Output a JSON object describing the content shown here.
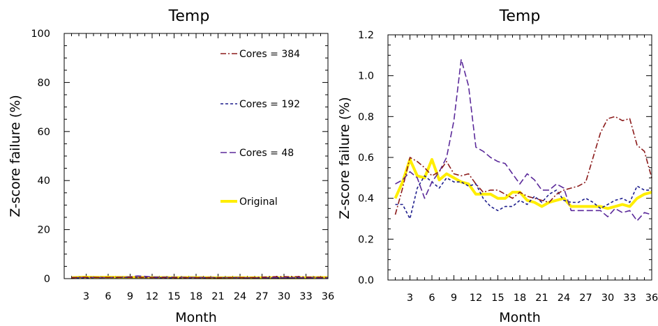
{
  "colors": {
    "cores_384": "#8b1a1a",
    "cores_192": "#1c1c8c",
    "cores_48": "#5b2a9a",
    "original": "#ffee00"
  },
  "chart_data": [
    {
      "type": "line",
      "title": "Temp",
      "xlabel": "Month",
      "ylabel": "Z-score failure (%)",
      "xlim": [
        0,
        36
      ],
      "ylim": [
        0,
        100
      ],
      "xticks": [
        "3",
        "6",
        "9",
        "12",
        "15",
        "18",
        "21",
        "24",
        "27",
        "30",
        "33",
        "36"
      ],
      "yticks": [
        "0",
        "20",
        "40",
        "60",
        "80",
        "100"
      ],
      "legend": "inside-right",
      "series": [
        {
          "name": "Cores = 384",
          "color": "#8b1a1a",
          "dash": "dashdot",
          "x": [
            1,
            2,
            3,
            4,
            5,
            6,
            7,
            8,
            9,
            10,
            11,
            12,
            13,
            14,
            15,
            16,
            17,
            18,
            19,
            20,
            21,
            22,
            23,
            24,
            25,
            26,
            27,
            28,
            29,
            30,
            31,
            32,
            33,
            34,
            35,
            36
          ],
          "y": [
            0.32,
            0.6,
            0.58,
            0.55,
            0.5,
            0.52,
            0.58,
            0.52,
            0.51,
            0.52,
            0.47,
            0.43,
            0.44,
            0.44,
            0.42,
            0.4,
            0.43,
            0.41,
            0.4,
            0.39,
            0.38,
            0.42,
            0.44,
            0.45,
            0.46,
            0.48,
            0.6,
            0.72,
            0.79,
            0.8,
            0.78,
            0.79,
            0.66,
            0.63,
            0.58,
            0.5
          ]
        },
        {
          "name": "Cores = 192",
          "color": "#1c1c8c",
          "dash": "dashed",
          "x": [
            1,
            2,
            3,
            4,
            5,
            6,
            7,
            8,
            9,
            10,
            11,
            12,
            13,
            14,
            15,
            16,
            17,
            18,
            19,
            20,
            21,
            22,
            23,
            24,
            25,
            26,
            27,
            28,
            29,
            30,
            31,
            32,
            33,
            34,
            35,
            36
          ],
          "y": [
            0.37,
            0.37,
            0.3,
            0.45,
            0.51,
            0.48,
            0.45,
            0.5,
            0.48,
            0.48,
            0.46,
            0.47,
            0.4,
            0.36,
            0.34,
            0.36,
            0.36,
            0.39,
            0.37,
            0.41,
            0.38,
            0.42,
            0.44,
            0.39,
            0.38,
            0.38,
            0.4,
            0.38,
            0.35,
            0.37,
            0.39,
            0.4,
            0.38,
            0.46,
            0.44,
            0.44
          ]
        },
        {
          "name": "Cores = 48",
          "color": "#5b2a9a",
          "dash": "longdash",
          "x": [
            1,
            2,
            3,
            4,
            5,
            6,
            7,
            8,
            9,
            10,
            11,
            12,
            13,
            14,
            15,
            16,
            17,
            18,
            19,
            20,
            21,
            22,
            23,
            24,
            25,
            26,
            27,
            28,
            29,
            30,
            31,
            32,
            33,
            34,
            35,
            36
          ],
          "y": [
            0.47,
            0.49,
            0.53,
            0.5,
            0.4,
            0.48,
            0.53,
            0.6,
            0.78,
            1.08,
            0.95,
            0.65,
            0.63,
            0.6,
            0.58,
            0.57,
            0.52,
            0.47,
            0.52,
            0.49,
            0.44,
            0.44,
            0.47,
            0.45,
            0.34,
            0.34,
            0.34,
            0.34,
            0.34,
            0.31,
            0.35,
            0.33,
            0.34,
            0.29,
            0.33,
            0.32
          ]
        },
        {
          "name": "Original",
          "color": "#ffee00",
          "dash": "solid",
          "x": [
            1,
            2,
            3,
            4,
            5,
            6,
            7,
            8,
            9,
            10,
            11,
            12,
            13,
            14,
            15,
            16,
            17,
            18,
            19,
            20,
            21,
            22,
            23,
            24,
            25,
            26,
            27,
            28,
            29,
            30,
            31,
            32,
            33,
            34,
            35,
            36
          ],
          "y": [
            0.4,
            0.48,
            0.59,
            0.51,
            0.5,
            0.59,
            0.49,
            0.52,
            0.5,
            0.48,
            0.47,
            0.42,
            0.42,
            0.42,
            0.4,
            0.4,
            0.43,
            0.43,
            0.39,
            0.38,
            0.36,
            0.38,
            0.39,
            0.4,
            0.36,
            0.36,
            0.36,
            0.36,
            0.36,
            0.35,
            0.36,
            0.37,
            0.36,
            0.4,
            0.42,
            0.43
          ]
        }
      ]
    },
    {
      "type": "line",
      "title": "Temp",
      "xlabel": "Month",
      "ylabel": "Z-score failure (%)",
      "xlim": [
        0,
        36
      ],
      "ylim": [
        0,
        1.2
      ],
      "xticks": [
        "3",
        "6",
        "9",
        "12",
        "15",
        "18",
        "21",
        "24",
        "27",
        "30",
        "33",
        "36"
      ],
      "yticks": [
        "0.0",
        "0.2",
        "0.4",
        "0.6",
        "0.8",
        "1.0",
        "1.2"
      ],
      "legend": "none",
      "series": [
        {
          "name": "Cores = 384",
          "color": "#8b1a1a",
          "dash": "dashdot",
          "x": [
            1,
            2,
            3,
            4,
            5,
            6,
            7,
            8,
            9,
            10,
            11,
            12,
            13,
            14,
            15,
            16,
            17,
            18,
            19,
            20,
            21,
            22,
            23,
            24,
            25,
            26,
            27,
            28,
            29,
            30,
            31,
            32,
            33,
            34,
            35,
            36
          ],
          "y": [
            0.32,
            0.45,
            0.6,
            0.58,
            0.55,
            0.51,
            0.53,
            0.58,
            0.52,
            0.51,
            0.52,
            0.47,
            0.43,
            0.44,
            0.44,
            0.42,
            0.4,
            0.43,
            0.41,
            0.4,
            0.39,
            0.38,
            0.42,
            0.44,
            0.45,
            0.46,
            0.48,
            0.6,
            0.72,
            0.79,
            0.8,
            0.78,
            0.79,
            0.66,
            0.63,
            0.5
          ]
        },
        {
          "name": "Cores = 192",
          "color": "#1c1c8c",
          "dash": "dashed",
          "x": [
            1,
            2,
            3,
            4,
            5,
            6,
            7,
            8,
            9,
            10,
            11,
            12,
            13,
            14,
            15,
            16,
            17,
            18,
            19,
            20,
            21,
            22,
            23,
            24,
            25,
            26,
            27,
            28,
            29,
            30,
            31,
            32,
            33,
            34,
            35,
            36
          ],
          "y": [
            0.37,
            0.37,
            0.3,
            0.45,
            0.51,
            0.48,
            0.45,
            0.5,
            0.48,
            0.48,
            0.46,
            0.47,
            0.4,
            0.36,
            0.34,
            0.36,
            0.36,
            0.39,
            0.37,
            0.41,
            0.38,
            0.42,
            0.44,
            0.39,
            0.38,
            0.38,
            0.4,
            0.38,
            0.35,
            0.37,
            0.39,
            0.4,
            0.38,
            0.46,
            0.44,
            0.44
          ]
        },
        {
          "name": "Cores = 48",
          "color": "#5b2a9a",
          "dash": "longdash",
          "x": [
            1,
            2,
            3,
            4,
            5,
            6,
            7,
            8,
            9,
            10,
            11,
            12,
            13,
            14,
            15,
            16,
            17,
            18,
            19,
            20,
            21,
            22,
            23,
            24,
            25,
            26,
            27,
            28,
            29,
            30,
            31,
            32,
            33,
            34,
            35,
            36
          ],
          "y": [
            0.47,
            0.49,
            0.53,
            0.5,
            0.4,
            0.48,
            0.53,
            0.6,
            0.78,
            1.08,
            0.95,
            0.65,
            0.63,
            0.6,
            0.58,
            0.57,
            0.52,
            0.47,
            0.52,
            0.49,
            0.44,
            0.44,
            0.47,
            0.45,
            0.34,
            0.34,
            0.34,
            0.34,
            0.34,
            0.31,
            0.35,
            0.33,
            0.34,
            0.29,
            0.33,
            0.32
          ]
        },
        {
          "name": "Original",
          "color": "#ffee00",
          "dash": "solid",
          "x": [
            1,
            2,
            3,
            4,
            5,
            6,
            7,
            8,
            9,
            10,
            11,
            12,
            13,
            14,
            15,
            16,
            17,
            18,
            19,
            20,
            21,
            22,
            23,
            24,
            25,
            26,
            27,
            28,
            29,
            30,
            31,
            32,
            33,
            34,
            35,
            36
          ],
          "y": [
            0.4,
            0.48,
            0.59,
            0.51,
            0.5,
            0.59,
            0.49,
            0.52,
            0.5,
            0.48,
            0.47,
            0.42,
            0.42,
            0.42,
            0.4,
            0.4,
            0.43,
            0.43,
            0.39,
            0.38,
            0.36,
            0.38,
            0.39,
            0.4,
            0.36,
            0.36,
            0.36,
            0.36,
            0.36,
            0.35,
            0.36,
            0.37,
            0.36,
            0.4,
            0.42,
            0.43
          ]
        }
      ]
    }
  ]
}
